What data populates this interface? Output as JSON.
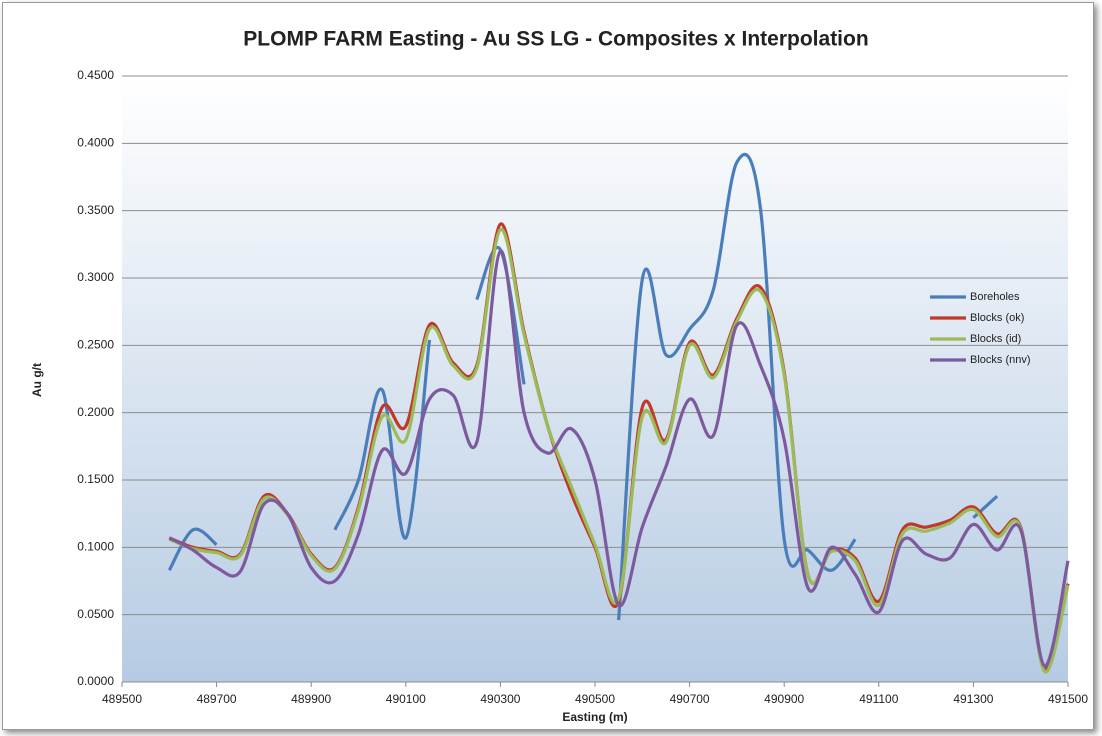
{
  "chart_data": {
    "type": "line",
    "title": "PLOMP FARM Easting - Au SS LG - Composites x Interpolation",
    "x_label": "Easting (m)",
    "y_label": "Au g/t",
    "x": [
      489600,
      489650,
      489700,
      489750,
      489800,
      489850,
      489900,
      489950,
      490000,
      490050,
      490100,
      490150,
      490200,
      490250,
      490300,
      490350,
      490400,
      490450,
      490500,
      490550,
      490600,
      490650,
      490700,
      490750,
      490800,
      490850,
      490900,
      490950,
      491000,
      491050,
      491100,
      491150,
      491200,
      491250,
      491300,
      491350,
      491400,
      491450,
      491500
    ],
    "series": [
      {
        "name": "Boreholes",
        "color": "#4a7ebb",
        "values": [
          0.083,
          0.113,
          0.102,
          null,
          null,
          null,
          null,
          0.113,
          0.15,
          0.217,
          0.107,
          0.254,
          null,
          0.284,
          0.321,
          0.221,
          null,
          null,
          null,
          0.046,
          0.299,
          0.243,
          0.262,
          0.291,
          0.386,
          0.351,
          0.106,
          0.098,
          0.083,
          0.106,
          null,
          null,
          null,
          null,
          0.122,
          0.138,
          null,
          null,
          null
        ]
      },
      {
        "name": "Blocks (ok)",
        "color": "#c0392b",
        "values": [
          0.107,
          0.1,
          0.097,
          0.095,
          0.138,
          0.125,
          0.095,
          0.085,
          0.13,
          0.204,
          0.19,
          0.265,
          0.237,
          0.235,
          0.34,
          0.26,
          0.19,
          0.14,
          0.1,
          0.06,
          0.204,
          0.18,
          0.252,
          0.228,
          0.27,
          0.293,
          0.23,
          0.08,
          0.098,
          0.092,
          0.06,
          0.113,
          0.115,
          0.12,
          0.13,
          0.11,
          0.115,
          0.01,
          0.073
        ]
      },
      {
        "name": "Blocks (id)",
        "color": "#9bbb59",
        "values": [
          0.106,
          0.099,
          0.096,
          0.094,
          0.136,
          0.124,
          0.094,
          0.084,
          0.128,
          0.197,
          0.18,
          0.262,
          0.235,
          0.233,
          0.336,
          0.258,
          0.19,
          0.145,
          0.102,
          0.062,
          0.197,
          0.178,
          0.25,
          0.226,
          0.268,
          0.29,
          0.228,
          0.08,
          0.097,
          0.09,
          0.057,
          0.11,
          0.112,
          0.118,
          0.128,
          0.108,
          0.114,
          0.008,
          0.072
        ]
      },
      {
        "name": "Blocks (nnv)",
        "color": "#7d5a9e",
        "values": [
          0.107,
          0.098,
          0.085,
          0.082,
          0.132,
          0.125,
          0.085,
          0.075,
          0.11,
          0.172,
          0.155,
          0.21,
          0.213,
          0.178,
          0.32,
          0.2,
          0.17,
          0.188,
          0.15,
          0.057,
          0.115,
          0.16,
          0.21,
          0.183,
          0.265,
          0.235,
          0.18,
          0.07,
          0.1,
          0.08,
          0.052,
          0.105,
          0.095,
          0.092,
          0.117,
          0.098,
          0.113,
          0.012,
          0.09
        ]
      }
    ],
    "xlim": [
      489500,
      491500
    ],
    "xticks": [
      489500,
      489700,
      489900,
      490100,
      490300,
      490500,
      490700,
      490900,
      491100,
      491300,
      491500
    ],
    "ylim": [
      0,
      0.45
    ],
    "yticks": [
      {
        "value": 0,
        "label": "0.0000"
      },
      {
        "value": 0.05,
        "label": "0.0500"
      },
      {
        "value": 0.1,
        "label": "0.1000"
      },
      {
        "value": 0.15,
        "label": "0.1500"
      },
      {
        "value": 0.2,
        "label": "0.2000"
      },
      {
        "value": 0.25,
        "label": "0.2500"
      },
      {
        "value": 0.3,
        "label": "0.3000"
      },
      {
        "value": 0.35,
        "label": "0.3500"
      },
      {
        "value": 0.4,
        "label": "0.4000"
      },
      {
        "value": 0.45,
        "label": "0.4500"
      }
    ],
    "grid": true,
    "legend": "right"
  }
}
